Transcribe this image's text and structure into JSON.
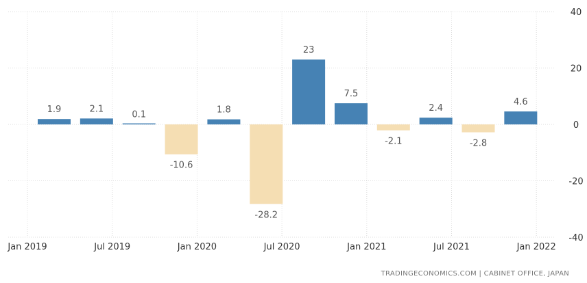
{
  "chart_data": {
    "type": "bar",
    "categories": [
      "Q1 2019",
      "Q2 2019",
      "Q3 2019",
      "Q4 2019",
      "Q1 2020",
      "Q2 2020",
      "Q3 2020",
      "Q4 2020",
      "Q1 2021",
      "Q2 2021",
      "Q3 2021",
      "Q4 2021"
    ],
    "values": [
      1.9,
      2.1,
      0.1,
      -10.6,
      1.8,
      -28.2,
      23,
      7.5,
      -2.1,
      2.4,
      -2.8,
      4.6
    ],
    "value_labels": [
      "1.9",
      "2.1",
      "0.1",
      "-10.6",
      "1.8",
      "-28.2",
      "23",
      "7.5",
      "-2.1",
      "2.4",
      "-2.8",
      "4.6"
    ],
    "x_tick_labels": [
      "Jan 2019",
      "Jul 2019",
      "Jan 2020",
      "Jul 2020",
      "Jan 2021",
      "Jul 2021",
      "Jan 2022"
    ],
    "y_ticks": [
      40,
      20,
      0,
      -20,
      -40
    ],
    "ylim": [
      -40,
      40
    ],
    "grid": true,
    "y_axis_side": "right",
    "colors": {
      "positive": "#4682b4",
      "negative": "#f5deb3"
    }
  },
  "source": "TRADINGECONOMICS.COM | CABINET OFFICE, JAPAN"
}
